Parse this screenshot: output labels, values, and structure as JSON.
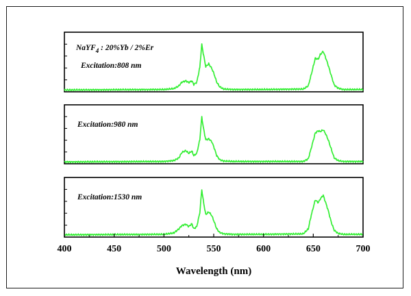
{
  "chart_data": {
    "type": "line",
    "xlabel": "Wavelength (nm)",
    "ylabel": "",
    "xlim": [
      400,
      700
    ],
    "x_ticks": [
      400,
      450,
      500,
      550,
      600,
      650,
      700
    ],
    "x_tick_labels": [
      "400",
      "450",
      "500",
      "550",
      "600",
      "650",
      "700"
    ],
    "grid": false,
    "line_color": "#33ee33",
    "panels": [
      {
        "name": "Excitation:808 nm",
        "labels": [
          "NaYF4 : 20%Yb / 2%Er",
          "Excitation:808 nm"
        ],
        "x": [
          400,
          500,
          510,
          515,
          518,
          522,
          525,
          528,
          530,
          533,
          536,
          538,
          540,
          542,
          545,
          548,
          550,
          553,
          556,
          560,
          570,
          600,
          640,
          645,
          648,
          652,
          655,
          657,
          660,
          662,
          665,
          668,
          671,
          675,
          680,
          700
        ],
        "y": [
          0.01,
          0.02,
          0.04,
          0.1,
          0.18,
          0.21,
          0.17,
          0.21,
          0.13,
          0.18,
          0.5,
          1.0,
          0.75,
          0.52,
          0.58,
          0.48,
          0.38,
          0.18,
          0.08,
          0.03,
          0.02,
          0.02,
          0.03,
          0.1,
          0.35,
          0.7,
          0.68,
          0.78,
          0.85,
          0.74,
          0.55,
          0.33,
          0.12,
          0.05,
          0.02,
          0.02
        ]
      },
      {
        "name": "Excitation:980 nm",
        "labels": [
          "Excitation:980 nm"
        ],
        "x": [
          400,
          500,
          510,
          515,
          518,
          522,
          525,
          528,
          530,
          533,
          536,
          538,
          540,
          542,
          545,
          548,
          550,
          553,
          556,
          560,
          570,
          600,
          640,
          645,
          648,
          652,
          655,
          657,
          660,
          662,
          665,
          668,
          671,
          675,
          680,
          700
        ],
        "y": [
          0.01,
          0.02,
          0.04,
          0.1,
          0.22,
          0.26,
          0.2,
          0.25,
          0.15,
          0.2,
          0.5,
          1.0,
          0.72,
          0.5,
          0.52,
          0.46,
          0.35,
          0.15,
          0.06,
          0.03,
          0.02,
          0.02,
          0.02,
          0.08,
          0.32,
          0.65,
          0.7,
          0.68,
          0.72,
          0.65,
          0.5,
          0.3,
          0.1,
          0.04,
          0.02,
          0.02
        ]
      },
      {
        "name": "Excitation:1530 nm",
        "labels": [
          "Excitation:1530 nm"
        ],
        "x": [
          400,
          500,
          510,
          515,
          518,
          522,
          525,
          528,
          530,
          533,
          536,
          538,
          540,
          542,
          545,
          548,
          550,
          553,
          556,
          560,
          570,
          600,
          640,
          645,
          648,
          652,
          655,
          657,
          660,
          662,
          665,
          668,
          671,
          675,
          680,
          700
        ],
        "y": [
          0.02,
          0.03,
          0.06,
          0.15,
          0.22,
          0.25,
          0.2,
          0.26,
          0.15,
          0.2,
          0.5,
          1.0,
          0.7,
          0.46,
          0.52,
          0.44,
          0.33,
          0.15,
          0.07,
          0.04,
          0.03,
          0.03,
          0.04,
          0.15,
          0.45,
          0.78,
          0.72,
          0.8,
          0.88,
          0.75,
          0.55,
          0.3,
          0.12,
          0.05,
          0.03,
          0.03
        ]
      }
    ]
  }
}
